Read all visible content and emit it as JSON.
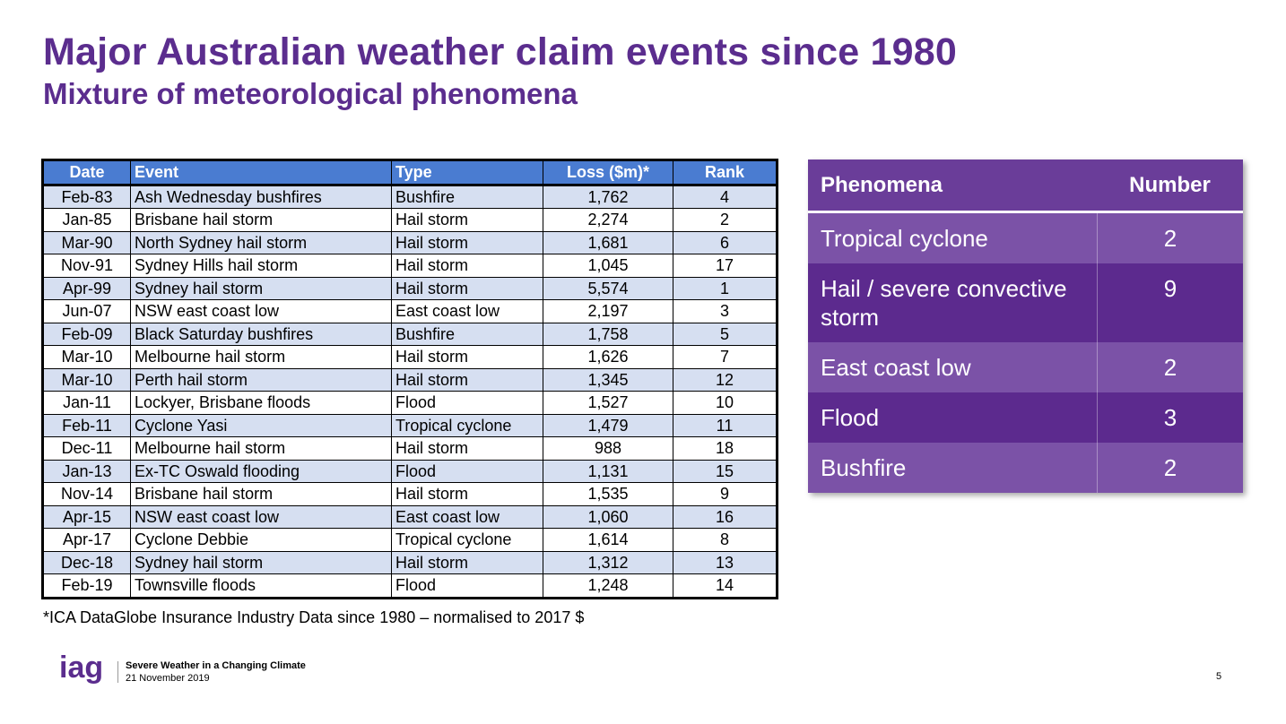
{
  "header": {
    "title": "Major Australian weather claim events since 1980",
    "subtitle": "Mixture of meteorological phenomena"
  },
  "claims_table": {
    "headers": [
      "Date",
      "Event",
      "Type",
      "Loss ($m)*",
      "Rank"
    ],
    "rows": [
      [
        "Feb-83",
        "Ash Wednesday bushfires",
        "Bushfire",
        "1,762",
        "4"
      ],
      [
        "Jan-85",
        "Brisbane hail storm",
        "Hail storm",
        "2,274",
        "2"
      ],
      [
        "Mar-90",
        "North Sydney hail storm",
        "Hail storm",
        "1,681",
        "6"
      ],
      [
        "Nov-91",
        "Sydney Hills hail storm",
        "Hail storm",
        "1,045",
        "17"
      ],
      [
        "Apr-99",
        "Sydney hail storm",
        "Hail storm",
        "5,574",
        "1"
      ],
      [
        "Jun-07",
        "NSW east coast low",
        "East coast low",
        "2,197",
        "3"
      ],
      [
        "Feb-09",
        "Black Saturday bushfires",
        "Bushfire",
        "1,758",
        "5"
      ],
      [
        "Mar-10",
        "Melbourne hail storm",
        "Hail storm",
        "1,626",
        "7"
      ],
      [
        "Mar-10",
        "Perth hail storm",
        "Hail storm",
        "1,345",
        "12"
      ],
      [
        "Jan-11",
        "Lockyer, Brisbane floods",
        "Flood",
        "1,527",
        "10"
      ],
      [
        "Feb-11",
        "Cyclone Yasi",
        "Tropical cyclone",
        "1,479",
        "11"
      ],
      [
        "Dec-11",
        "Melbourne hail storm",
        "Hail storm",
        "988",
        "18"
      ],
      [
        "Jan-13",
        "Ex-TC Oswald flooding",
        "Flood",
        "1,131",
        "15"
      ],
      [
        "Nov-14",
        "Brisbane hail storm",
        "Hail storm",
        "1,535",
        "9"
      ],
      [
        "Apr-15",
        "NSW east coast low",
        "East coast low",
        "1,060",
        "16"
      ],
      [
        "Apr-17",
        "Cyclone Debbie",
        "Tropical cyclone",
        "1,614",
        "8"
      ],
      [
        "Dec-18",
        "Sydney hail storm",
        "Hail storm",
        "1,312",
        "13"
      ],
      [
        "Feb-19",
        "Townsville floods",
        "Flood",
        "1,248",
        "14"
      ]
    ]
  },
  "footnote": "*ICA DataGlobe Insurance Industry Data since 1980 – normalised to 2017 $",
  "phenomena_table": {
    "headers": [
      "Phenomena",
      "Number"
    ],
    "rows": [
      [
        "Tropical cyclone",
        "2"
      ],
      [
        "Hail / severe convective storm",
        "9"
      ],
      [
        "East coast low",
        "2"
      ],
      [
        "Flood",
        "3"
      ],
      [
        "Bushfire",
        "2"
      ]
    ]
  },
  "footer": {
    "logo_text": "iag",
    "presentation_title": "Severe Weather in a Changing Climate",
    "date": "21 November 2019",
    "page_number": "5"
  },
  "colors": {
    "title_purple": "#5b2d8e",
    "table_header_blue": "#4a7cd1",
    "table_stripe": "#d6dff1",
    "pheno_light": "#7b52a7",
    "pheno_dark": "#5c2a8e"
  }
}
